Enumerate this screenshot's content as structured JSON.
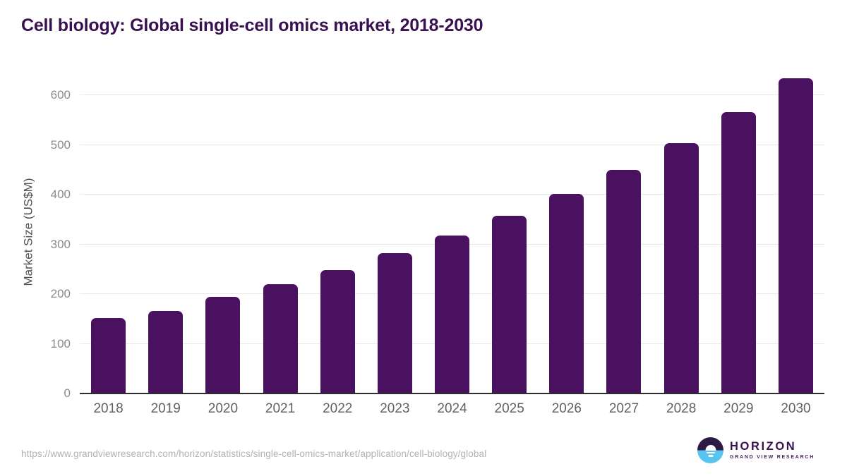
{
  "chart_data": {
    "type": "bar",
    "title": "Cell biology: Global single-cell omics market, 2018-2030",
    "categories": [
      "2018",
      "2019",
      "2020",
      "2021",
      "2022",
      "2023",
      "2024",
      "2025",
      "2026",
      "2027",
      "2028",
      "2029",
      "2030"
    ],
    "values": [
      152,
      166,
      195,
      220,
      249,
      283,
      318,
      357,
      402,
      450,
      504,
      566,
      634
    ],
    "xlabel": "",
    "ylabel": "Market Size (US$M)",
    "yticks": [
      0,
      100,
      200,
      300,
      400,
      500,
      600
    ],
    "ylim": [
      0,
      650
    ],
    "grid": true,
    "legend": false,
    "bar_color": "#49115f"
  },
  "colors": {
    "bar": "#49115f",
    "title": "#3a1150",
    "axis_line": "#2e2e2e",
    "gridline": "#e8e8e8",
    "y_tick_label": "#8c8c8c",
    "x_tick_label": "#616161",
    "axis_title": "#4f4f4f",
    "source_url_text": "#b3b1b1",
    "logo_circle_top": "#2c1a44",
    "logo_circle_bottom": "#5ac4f1",
    "logo_text": "#3a1150"
  },
  "footer": {
    "source_url": "https://www.grandviewresearch.com/horizon/statistics/single-cell-omics-market/application/cell-biology/global",
    "logo": {
      "name": "HORIZON",
      "tagline": "GRAND VIEW RESEARCH"
    }
  }
}
